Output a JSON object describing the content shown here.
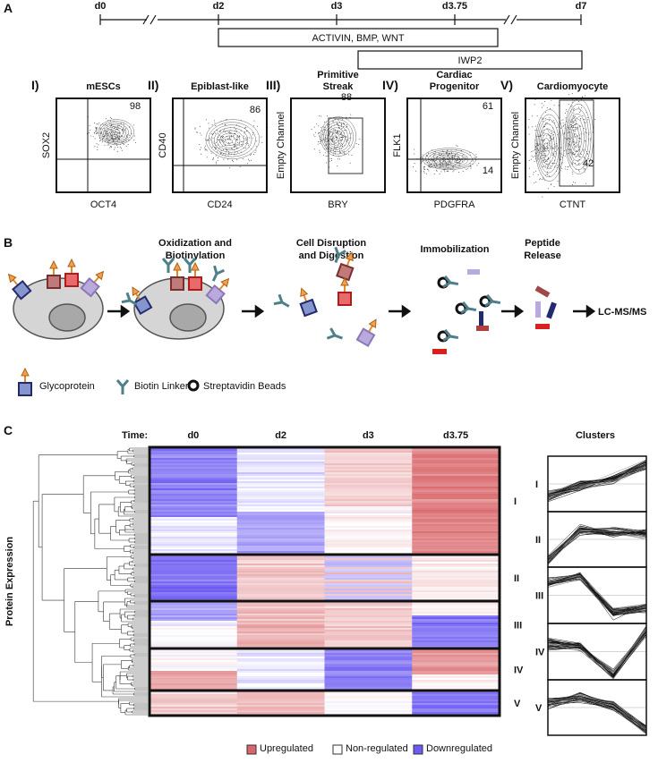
{
  "panel_a": {
    "label": "A",
    "timeline": [
      "d0",
      "d2",
      "d3",
      "d3.75",
      "d7"
    ],
    "treatments": [
      "ACTIVIN, BMP, WNT",
      "IWP2"
    ],
    "plots": [
      {
        "numeral": "I)",
        "title": [
          "mESCs"
        ],
        "y_label": "SOX2",
        "x_label": "OCT4",
        "gates": [
          98
        ]
      },
      {
        "numeral": "II)",
        "title": [
          "Epiblast-like"
        ],
        "y_label": "CD40",
        "x_label": "CD24",
        "gates": [
          86
        ]
      },
      {
        "numeral": "III)",
        "title": [
          "Primitive",
          "Streak"
        ],
        "y_label": "Empty Channel",
        "x_label": "BRY",
        "gates": [
          88
        ]
      },
      {
        "numeral": "IV)",
        "title": [
          "Cardiac",
          "Progenitor"
        ],
        "y_label": "FLK1",
        "x_label": "PDGFRA",
        "gates": [
          61,
          14
        ]
      },
      {
        "numeral": "V)",
        "title": [
          "Cardiomyocyte"
        ],
        "y_label": "Empty Channel",
        "x_label": "CTNT",
        "gates": [
          42
        ]
      }
    ]
  },
  "panel_b": {
    "label": "B",
    "steps": [
      [
        "Oxidization and",
        "Biotinylation"
      ],
      [
        "Cell Disruption",
        "and Digestion"
      ],
      [
        "Immobilization"
      ],
      [
        "Peptide",
        "Release"
      ]
    ],
    "output": "LC-MS/MS",
    "legend": [
      "Glycoprotein",
      "Biotin Linker",
      "Streptavidin Beads"
    ]
  },
  "panel_c": {
    "label": "C",
    "time_label": "Time:",
    "columns": [
      "d0",
      "d2",
      "d3",
      "d3.75"
    ],
    "y_label": "Protein Expression",
    "clusters_title": "Clusters",
    "clusters": [
      "I",
      "II",
      "III",
      "IV",
      "V"
    ],
    "legend": [
      "Upregulated",
      "Non-regulated",
      "Downregulated"
    ]
  }
}
